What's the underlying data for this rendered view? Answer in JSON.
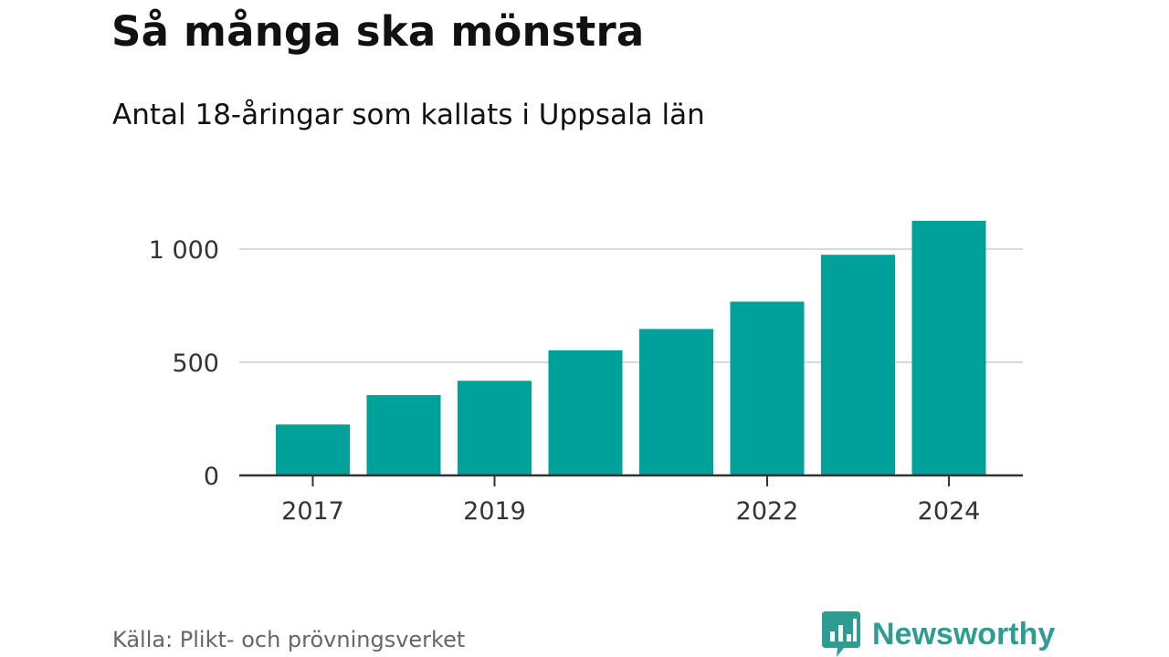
{
  "title": "Så många ska mönstra",
  "subtitle": "Antal 18-åringar som kallats i Uppsala län",
  "source": "Källa: Plikt- och prövningsverket",
  "logo": {
    "name": "Newsworthy",
    "color": "#2e9c90"
  },
  "chart_data": {
    "type": "bar",
    "categories": [
      "2017",
      "2018",
      "2019",
      "2020",
      "2021",
      "2022",
      "2023",
      "2024"
    ],
    "values": [
      225,
      355,
      418,
      553,
      647,
      768,
      975,
      1125
    ],
    "x_tick_labels": [
      "2017",
      "2019",
      "2022",
      "2024"
    ],
    "y_ticks": [
      0,
      500,
      1000
    ],
    "y_tick_labels": [
      "0",
      "500",
      "1 000"
    ],
    "ylim": [
      0,
      1150
    ],
    "grid": true,
    "bar_color": "#00a19a"
  }
}
